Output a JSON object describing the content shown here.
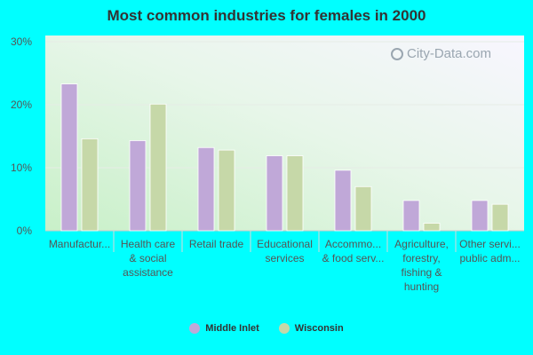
{
  "chart_data": {
    "type": "bar",
    "title": "Most common industries for females in 2000",
    "categories": [
      [
        "Manufactur..."
      ],
      [
        "Health care",
        "& social",
        "assistance"
      ],
      [
        "Retail trade"
      ],
      [
        "Educational",
        "services"
      ],
      [
        "Accommo...",
        "& food serv..."
      ],
      [
        "Agriculture,",
        "forestry,",
        "fishing &",
        "hunting"
      ],
      [
        "Other servi...",
        "public adm..."
      ]
    ],
    "series": [
      {
        "name": "Middle Inlet",
        "color": "#c0a8d8",
        "values": [
          23.3,
          14.3,
          13.2,
          11.9,
          9.6,
          4.8,
          4.8
        ]
      },
      {
        "name": "Wisconsin",
        "color": "#c6d8a8",
        "values": [
          14.6,
          20.1,
          12.8,
          11.9,
          7.0,
          1.2,
          4.2
        ]
      }
    ],
    "yticks": [
      "0%",
      "10%",
      "20%",
      "30%"
    ],
    "ylim": [
      0,
      30
    ],
    "grid": true,
    "legend_position": "bottom"
  },
  "watermark": "City-Data.com"
}
